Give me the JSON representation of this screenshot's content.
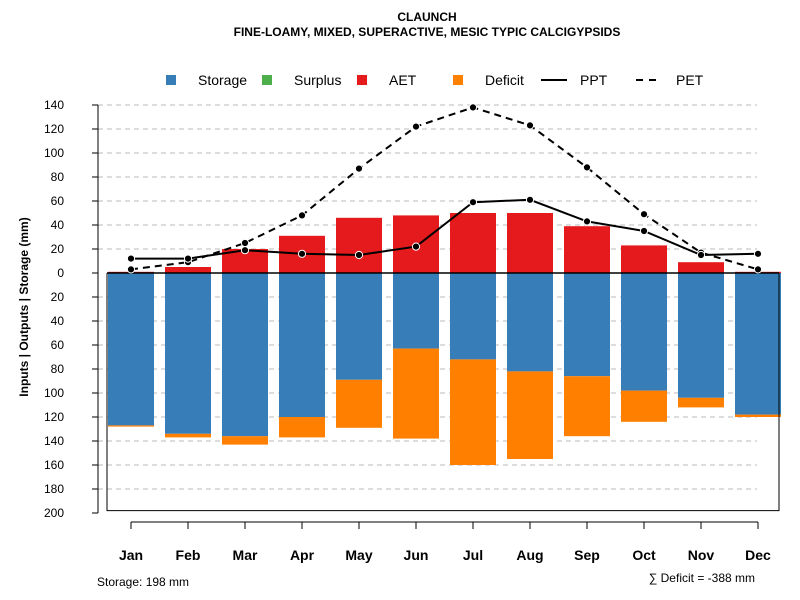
{
  "chart_data": {
    "type": "bar",
    "title": "CLAUNCH",
    "subtitle": "FINE-LOAMY, MIXED, SUPERACTIVE, MESIC TYPIC CALCIGYPSIDS",
    "ylabel": "Inputs | Outputs | Storage     (mm)",
    "ylim_top": [
      0,
      140
    ],
    "ylim_bottom": [
      0,
      200
    ],
    "y_ticks_top": [
      "0",
      "20",
      "40",
      "60",
      "80",
      "100",
      "120",
      "140"
    ],
    "y_ticks_bottom": [
      "20",
      "40",
      "60",
      "80",
      "100",
      "120",
      "140",
      "160",
      "180",
      "200"
    ],
    "categories": [
      "Jan",
      "Feb",
      "Mar",
      "Apr",
      "May",
      "Jun",
      "Jul",
      "Aug",
      "Sep",
      "Oct",
      "Nov",
      "Dec"
    ],
    "legend": [
      {
        "name": "Storage",
        "kind": "box",
        "color": "#377EB8"
      },
      {
        "name": "Surplus",
        "kind": "box",
        "color": "#4DAF4A"
      },
      {
        "name": "AET",
        "kind": "box",
        "color": "#E41A1C"
      },
      {
        "name": "Deficit",
        "kind": "box",
        "color": "#FF7F00"
      },
      {
        "name": "PPT",
        "kind": "solid",
        "color": "#000000"
      },
      {
        "name": "PET",
        "kind": "dashed",
        "color": "#000000"
      }
    ],
    "series": [
      {
        "name": "AET",
        "values": [
          1,
          5,
          20,
          31,
          46,
          48,
          50,
          50,
          39,
          23,
          9,
          1
        ]
      },
      {
        "name": "Storage",
        "values": [
          127,
          134,
          136,
          120,
          89,
          63,
          72,
          82,
          86,
          98,
          104,
          118
        ]
      },
      {
        "name": "Deficit",
        "values": [
          1,
          3,
          7,
          17,
          40,
          75,
          88,
          73,
          50,
          26,
          8,
          2
        ]
      },
      {
        "name": "Surplus",
        "values": [
          0,
          0,
          0,
          0,
          0,
          0,
          0,
          0,
          0,
          0,
          0,
          0
        ]
      },
      {
        "name": "PPT",
        "values": [
          12,
          12,
          19,
          16,
          15,
          22,
          59,
          61,
          43,
          35,
          15,
          16
        ]
      },
      {
        "name": "PET",
        "values": [
          3,
          9,
          25,
          48,
          87,
          122,
          138,
          123,
          88,
          49,
          17,
          3
        ]
      }
    ],
    "storage_capacity": 198,
    "footer_left": "Storage: 198 mm",
    "footer_right": "∑ Deficit = -388 mm",
    "colors": {
      "storage": "#377EB8",
      "surplus": "#4DAF4A",
      "aet": "#E41A1C",
      "deficit": "#FF7F00",
      "grid": "#bbbbbb"
    }
  }
}
